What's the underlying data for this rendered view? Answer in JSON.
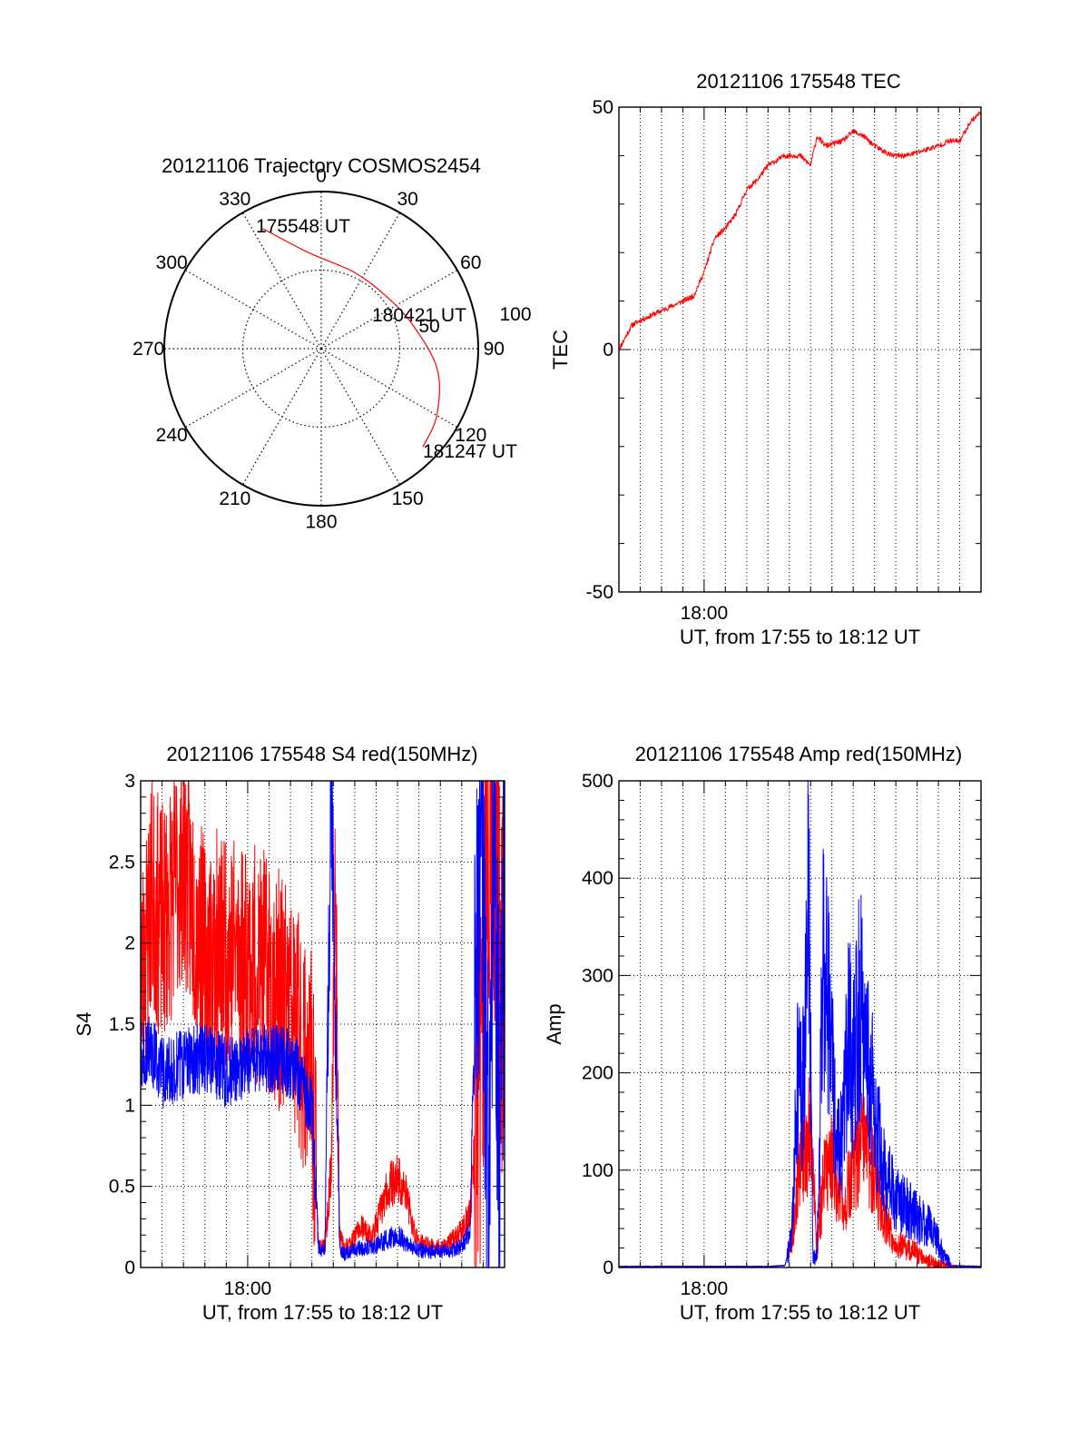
{
  "figure": {
    "background": "#ffffff"
  },
  "polar": {
    "title": "20121106 Trajectory COSMOS2454",
    "angle_labels": [
      "0",
      "30",
      "60",
      "90",
      "120",
      "150",
      "180",
      "210",
      "240",
      "270",
      "300",
      "330"
    ],
    "ring_labels": [
      "50",
      "100"
    ],
    "annotations": [
      "175548 UT",
      "180421 UT",
      "181247 UT"
    ],
    "track_color": "#ff0000",
    "chart_data": {
      "type": "polar-trajectory",
      "r_max": 100,
      "track": [
        {
          "az": 334,
          "r": 85
        },
        {
          "az": 352,
          "r": 62
        },
        {
          "az": 23,
          "r": 53
        },
        {
          "az": 50,
          "r": 53
        },
        {
          "az": 75,
          "r": 60
        },
        {
          "az": 100,
          "r": 75
        },
        {
          "az": 120,
          "r": 85
        },
        {
          "az": 134,
          "r": 90
        }
      ]
    }
  },
  "tec": {
    "title": "20121106 175548 TEC",
    "ylabel": "TEC",
    "xlabel": "UT, from 17:55 to 18:12 UT",
    "xtick_label": "18:00",
    "yticks": [
      "-50",
      "0",
      "50"
    ],
    "color": "#ff0000",
    "chart_data": {
      "type": "line",
      "xlim": [
        0,
        17
      ],
      "ylim": [
        -50,
        50
      ],
      "x_major": 4,
      "x_grid_step": 1,
      "series": [
        {
          "x": [
            0,
            0.6,
            1.0,
            2.0,
            3.0,
            3.5,
            4.0,
            4.5,
            5.0,
            5.5,
            6.0,
            6.5,
            7.0,
            7.8,
            8.5,
            9.0,
            9.3,
            9.7,
            10.5,
            11.0,
            11.5,
            12.0,
            12.8,
            13.5,
            15.0,
            15.5,
            16.0,
            16.5,
            17.0
          ],
          "y": [
            0,
            5,
            6,
            8,
            10,
            11,
            16,
            23,
            25,
            28,
            33,
            35,
            38,
            40,
            40,
            38,
            44,
            42,
            43,
            45,
            44,
            42,
            40,
            40,
            42,
            43,
            43,
            47,
            49
          ]
        }
      ]
    }
  },
  "s4": {
    "title": "20121106 175548 S4 red(150MHz)",
    "ylabel": "S4",
    "xlabel": "UT, from 17:55 to 18:12 UT",
    "xtick_label": "18:00",
    "yticks": [
      "0",
      "0.5",
      "1",
      "1.5",
      "2",
      "2.5",
      "3"
    ],
    "colors": [
      "#ff0000",
      "#0000ff"
    ],
    "chart_data": {
      "type": "line",
      "xlim": [
        0,
        17
      ],
      "ylim": [
        0,
        3
      ],
      "x_major": 5,
      "x_grid_step": 1,
      "series": [
        {
          "x": [
            0.0,
            0.5,
            1.0,
            2.0,
            3.0,
            4.0,
            5.0,
            6.0,
            7.0,
            7.5,
            8.0,
            8.3,
            8.6,
            8.9,
            9.1,
            9.3,
            9.5,
            9.8,
            10.3,
            10.8,
            11.2,
            11.6,
            12.0,
            12.4,
            12.8,
            13.2,
            13.8,
            14.4,
            14.8,
            15.1,
            15.4,
            15.6,
            15.9,
            16.2,
            16.5,
            16.8,
            17.0
          ],
          "y": [
            1.7,
            2.3,
            2.1,
            2.5,
            1.9,
            2.0,
            1.9,
            1.8,
            1.6,
            1.4,
            1.2,
            0.15,
            0.12,
            0.6,
            2.4,
            0.2,
            0.12,
            0.15,
            0.25,
            0.18,
            0.35,
            0.5,
            0.55,
            0.45,
            0.2,
            0.15,
            0.12,
            0.15,
            0.2,
            0.25,
            0.35,
            0.7,
            1.5,
            2.6,
            3.0,
            2.0,
            1.8
          ]
        },
        {
          "x": [
            0.0,
            0.5,
            1.0,
            2.0,
            3.0,
            4.0,
            5.0,
            6.0,
            7.0,
            7.5,
            8.0,
            8.3,
            8.6,
            8.9,
            9.1,
            9.3,
            9.5,
            9.8,
            10.3,
            10.8,
            11.2,
            11.6,
            12.0,
            12.4,
            12.8,
            13.2,
            13.8,
            14.4,
            14.8,
            15.1,
            15.4,
            15.6,
            15.9,
            16.2,
            16.5,
            16.8,
            17.0
          ],
          "y": [
            1.3,
            1.35,
            1.2,
            1.25,
            1.3,
            1.2,
            1.25,
            1.3,
            1.25,
            1.15,
            1.0,
            0.12,
            0.1,
            3.0,
            1.5,
            0.1,
            0.08,
            0.1,
            0.12,
            0.12,
            0.15,
            0.18,
            0.2,
            0.15,
            0.12,
            0.1,
            0.1,
            0.1,
            0.12,
            0.15,
            0.25,
            1.5,
            3.0,
            0.5,
            3.0,
            0.2,
            3.0
          ]
        }
      ]
    }
  },
  "amp": {
    "title": "20121106 175548 Amp red(150MHz)",
    "ylabel": "Amp",
    "xlabel": "UT, from 17:55 to 18:12 UT",
    "xtick_label": "18:00",
    "yticks": [
      "0",
      "100",
      "200",
      "300",
      "400",
      "500"
    ],
    "colors": [
      "#ff0000",
      "#0000ff"
    ],
    "chart_data": {
      "type": "line",
      "xlim": [
        0,
        17
      ],
      "ylim": [
        0,
        500
      ],
      "x_major": 4,
      "x_grid_step": 1,
      "series": [
        {
          "x": [
            0.0,
            4.0,
            7.0,
            7.8,
            8.2,
            8.6,
            9.0,
            9.3,
            9.6,
            10.0,
            10.5,
            11.0,
            11.5,
            12.0,
            12.5,
            13.0,
            14.0,
            14.5,
            15.0,
            15.5,
            17.0
          ],
          "y": [
            1,
            1,
            1,
            2,
            40,
            120,
            150,
            20,
            90,
            110,
            60,
            100,
            130,
            90,
            50,
            25,
            15,
            8,
            3,
            1,
            1
          ]
        },
        {
          "x": [
            0.0,
            4.0,
            7.0,
            7.8,
            8.1,
            8.4,
            8.7,
            8.9,
            9.1,
            9.3,
            9.6,
            9.9,
            10.2,
            10.5,
            10.8,
            11.0,
            11.3,
            11.6,
            12.0,
            12.4,
            12.8,
            13.2,
            13.6,
            14.0,
            14.4,
            14.8,
            15.2,
            15.6,
            17.0
          ],
          "y": [
            1,
            1,
            1,
            2,
            30,
            200,
            180,
            425,
            10,
            10,
            330,
            250,
            120,
            130,
            250,
            200,
            270,
            240,
            160,
            100,
            80,
            65,
            60,
            50,
            45,
            35,
            15,
            2,
            1
          ]
        }
      ]
    }
  }
}
